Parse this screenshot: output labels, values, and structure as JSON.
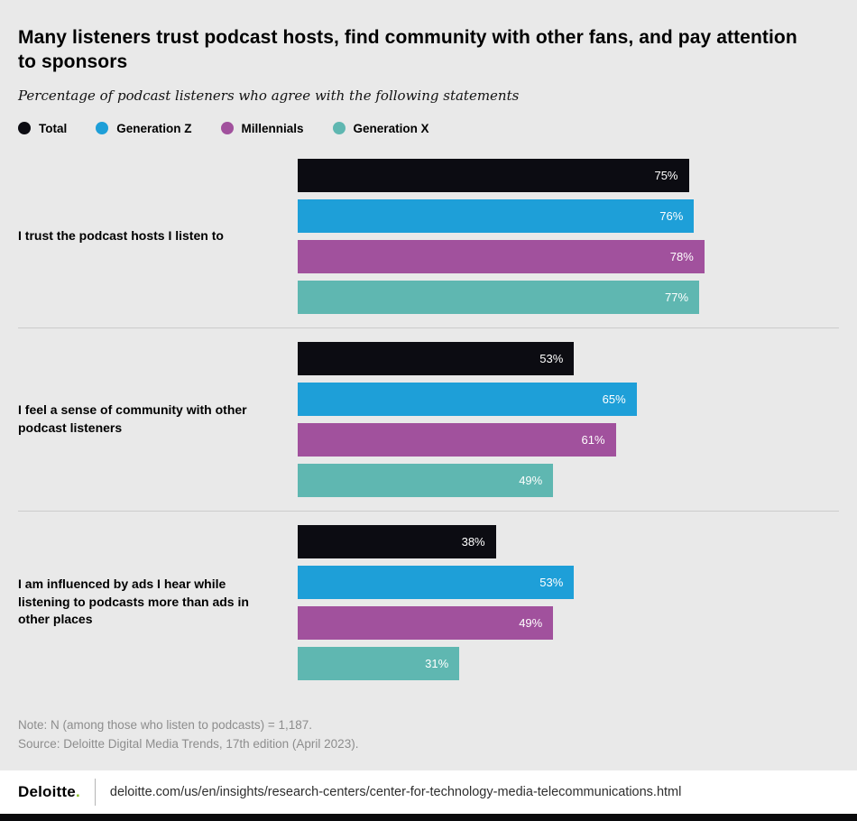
{
  "header": {
    "title": "Many listeners trust podcast hosts, find community with other fans, and pay attention to sponsors",
    "subtitle": "Percentage of podcast listeners who agree with the following statements"
  },
  "chart_data": {
    "type": "bar",
    "orientation": "horizontal",
    "unit": "%",
    "xlim": [
      0,
      100
    ],
    "legend_position": "top",
    "grid": false,
    "categories": [
      "I trust the podcast hosts I listen to",
      "I feel a sense of community with other podcast listeners",
      "I am influenced by ads I hear while listening to podcasts more than ads in other places"
    ],
    "series": [
      {
        "name": "Total",
        "color": "#0c0c12",
        "values": [
          75,
          53,
          38
        ]
      },
      {
        "name": "Generation Z",
        "color": "#1e9fd8",
        "values": [
          76,
          65,
          53
        ]
      },
      {
        "name": "Millennials",
        "color": "#a1519d",
        "values": [
          78,
          61,
          49
        ]
      },
      {
        "name": "Generation X",
        "color": "#5fb7b1",
        "values": [
          77,
          49,
          31
        ]
      }
    ]
  },
  "notes": {
    "note": "Note: N (among those who listen to podcasts) = 1,187.",
    "source": "Source: Deloitte Digital Media Trends, 17th edition (April 2023)."
  },
  "footer": {
    "brand": "Deloitte",
    "brand_dot": ".",
    "url": "deloitte.com/us/en/insights/research-centers/center-for-technology-media-telecommunications.html"
  }
}
